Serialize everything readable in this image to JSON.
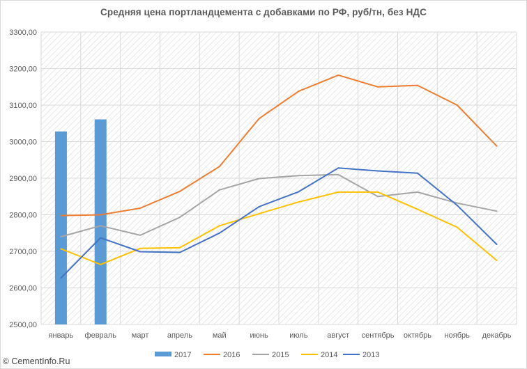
{
  "chart_data": {
    "type": "line",
    "title": "Средняя цена портландцемента с добавками по РФ, руб/тн, без НДС",
    "xlabel": "",
    "ylabel": "",
    "categories": [
      "январь",
      "февраль",
      "март",
      "апрель",
      "май",
      "июнь",
      "июль",
      "август",
      "сентябрь",
      "октябрь",
      "ноябрь",
      "декабрь"
    ],
    "ylim": [
      2500,
      3300
    ],
    "yticks": [
      "2500,00",
      "2600,00",
      "2700,00",
      "2800,00",
      "2900,00",
      "3000,00",
      "3100,00",
      "3200,00",
      "3300,00"
    ],
    "grid": true,
    "legend_position": "bottom",
    "series": [
      {
        "name": "2017",
        "kind": "bar",
        "color": "#5b9bd5",
        "values": [
          3028,
          3061,
          null,
          null,
          null,
          null,
          null,
          null,
          null,
          null,
          null,
          null
        ]
      },
      {
        "name": "2016",
        "kind": "line",
        "color": "#ed7d31",
        "values": [
          2798,
          2800,
          2818,
          2864,
          2932,
          3063,
          3138,
          3182,
          3150,
          3154,
          3100,
          2988
        ]
      },
      {
        "name": "2015",
        "kind": "line",
        "color": "#a5a5a5",
        "values": [
          2740,
          2770,
          2744,
          2793,
          2868,
          2899,
          2907,
          2910,
          2850,
          2862,
          2832,
          2810
        ]
      },
      {
        "name": "2014",
        "kind": "line",
        "color": "#ffc000",
        "values": [
          2707,
          2664,
          2708,
          2710,
          2770,
          2803,
          2835,
          2862,
          2862,
          2815,
          2766,
          2675
        ]
      },
      {
        "name": "2013",
        "kind": "line",
        "color": "#4472c4",
        "values": [
          2627,
          2737,
          2699,
          2697,
          2750,
          2822,
          2863,
          2928,
          2920,
          2914,
          2826,
          2719
        ]
      }
    ]
  },
  "watermark": {
    "symbol": "©",
    "text": "CementInfo.Ru"
  }
}
